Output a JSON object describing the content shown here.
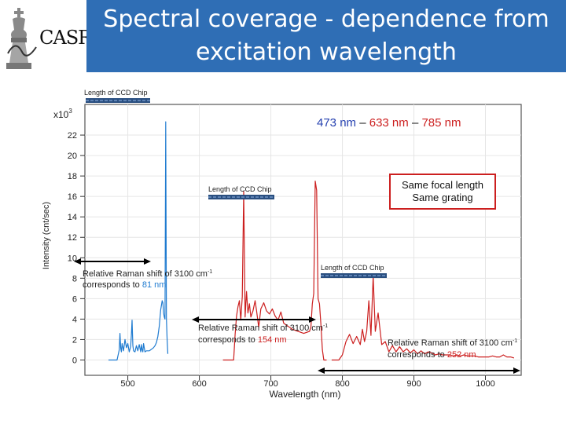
{
  "title": {
    "line1": "Spectral coverage - dependence from",
    "line2": "excitation wavelength"
  },
  "logo": {
    "text": "CASR",
    "icon": "chess-king-icon"
  },
  "colors": {
    "title_bg": "#2f6eb5",
    "blue_laser": "#1f7bd0",
    "red_laser": "#cc1f1f",
    "bar": "#2a4f80"
  },
  "legend": {
    "w1": "473 nm",
    "sep1": "–",
    "w2": "633 nm",
    "sep2": "–",
    "w3": "785 nm"
  },
  "note_box": {
    "line1": "Same focal length",
    "line2": "Same grating"
  },
  "ccd": {
    "top": "Length of CCD Chip",
    "mid": "Length of CCD Chip",
    "right": "Length of CCD Chip"
  },
  "annotations": {
    "a473": {
      "line1": "Relative Raman shift of 3100 cm",
      "sup": "-1",
      "pre2": "corresponds to ",
      "value": "81 nm"
    },
    "a633": {
      "line1": "Relative Raman shift of 3100 cm",
      "sup": "-1",
      "pre2": "corresponds to ",
      "value": "154 nm"
    },
    "a785": {
      "line1": "Relative Raman shift of 3100 cm",
      "sup": "-1",
      "pre2": "corresponds to ",
      "value": "252 nm"
    }
  },
  "chart_data": {
    "type": "line",
    "title": "",
    "xlabel": "Wavelength (nm)",
    "ylabel": "Intensity (cnt/sec)",
    "y_multiplier": "x10",
    "y_multiplier_exp": "3",
    "xlim": [
      440,
      1050
    ],
    "ylim": [
      -1.5,
      25
    ],
    "x_ticks": [
      500,
      600,
      700,
      800,
      900,
      1000
    ],
    "x_tick_labels": [
      "500",
      "600",
      "700",
      "800",
      "900",
      "1000"
    ],
    "y_ticks": [
      0,
      2,
      4,
      6,
      8,
      10,
      12,
      14,
      16,
      18,
      20,
      22
    ],
    "y_tick_labels": [
      "0",
      "2",
      "4",
      "6",
      "8",
      "10",
      "12",
      "14",
      "16",
      "18",
      "20",
      "22"
    ],
    "series": [
      {
        "name": "473 nm",
        "color": "#1f7bd0",
        "x": [
          473,
          476,
          479,
          482,
          485,
          488,
          489,
          490,
          491,
          492,
          494,
          496,
          498,
          500,
          502,
          504,
          505,
          506,
          507,
          508,
          510,
          512,
          514,
          516,
          518,
          519,
          520,
          521,
          522,
          524,
          526,
          528,
          530,
          532,
          534,
          536,
          538,
          540,
          542,
          544,
          546,
          548,
          549,
          550,
          551,
          552,
          553,
          554,
          555,
          556
        ],
        "y": [
          0,
          0,
          0,
          0,
          0,
          1.0,
          2.6,
          1.2,
          0.8,
          1.6,
          0.9,
          2.0,
          1.2,
          1.6,
          0.8,
          1.3,
          2.4,
          3.9,
          1.4,
          0.9,
          0.8,
          1.4,
          0.9,
          1.5,
          0.8,
          1.5,
          1.0,
          0.8,
          1.6,
          0.8,
          0.9,
          0.9,
          0.9,
          1.0,
          1.1,
          1.2,
          1.4,
          1.7,
          2.3,
          3.3,
          4.9,
          5.8,
          5.6,
          4.6,
          4.2,
          4.0,
          23.3,
          4.0,
          2.0,
          0.6
        ]
      },
      {
        "name": "633 nm",
        "color": "#cc1f1f",
        "x": [
          633,
          637,
          641,
          645,
          648,
          650,
          652,
          654,
          656,
          658,
          660,
          662,
          664,
          666,
          668,
          670,
          672,
          675,
          678,
          680,
          683,
          686,
          690,
          694,
          698,
          702,
          706,
          710,
          714,
          718,
          722,
          726,
          730,
          734,
          738,
          742,
          746,
          750,
          754,
          756,
          758,
          760,
          762,
          764,
          766,
          768,
          770,
          772,
          774,
          776,
          778
        ],
        "y": [
          0,
          0,
          0,
          0,
          0,
          2.5,
          4.3,
          5.2,
          5.8,
          3.9,
          6.2,
          16.5,
          4.2,
          6.7,
          4.6,
          5.5,
          4.2,
          4.8,
          5.8,
          4.8,
          3.2,
          5.0,
          5.6,
          4.8,
          4.5,
          5.0,
          4.3,
          3.9,
          4.7,
          3.6,
          3.4,
          3.2,
          3.0,
          2.9,
          2.8,
          2.7,
          2.6,
          2.7,
          2.8,
          3.2,
          5.5,
          6.5,
          17.5,
          16.6,
          6.0,
          5.5,
          3.5,
          1.0,
          0,
          0,
          0
        ]
      },
      {
        "name": "785 nm",
        "color": "#cc1f1f",
        "x": [
          785,
          790,
          795,
          800,
          805,
          810,
          815,
          820,
          825,
          828,
          831,
          834,
          837,
          840,
          843,
          846,
          850,
          855,
          860,
          865,
          870,
          875,
          880,
          885,
          890,
          895,
          900,
          905,
          910,
          915,
          920,
          925,
          930,
          935,
          940,
          945,
          950,
          955,
          960,
          965,
          970,
          975,
          980,
          985,
          990,
          995,
          1000,
          1005,
          1010,
          1015,
          1020,
          1025,
          1030,
          1035,
          1040
        ],
        "y": [
          0,
          0,
          0,
          0.5,
          1.8,
          2.5,
          1.6,
          2.3,
          1.5,
          3.0,
          1.8,
          2.8,
          5.8,
          2.4,
          8.2,
          2.8,
          4.6,
          1.5,
          1.8,
          0.8,
          1.4,
          0.8,
          1.3,
          0.8,
          1.1,
          0.7,
          1.0,
          0.6,
          0.9,
          0.6,
          0.8,
          0.7,
          0.5,
          0.6,
          0.5,
          0.5,
          0.5,
          0.4,
          0.5,
          0.4,
          0.5,
          0.4,
          0.4,
          0.4,
          0.3,
          0.3,
          0.3,
          0.3,
          0.4,
          0.3,
          0.3,
          0.5,
          0.3,
          0.3,
          0.2
        ]
      }
    ]
  }
}
